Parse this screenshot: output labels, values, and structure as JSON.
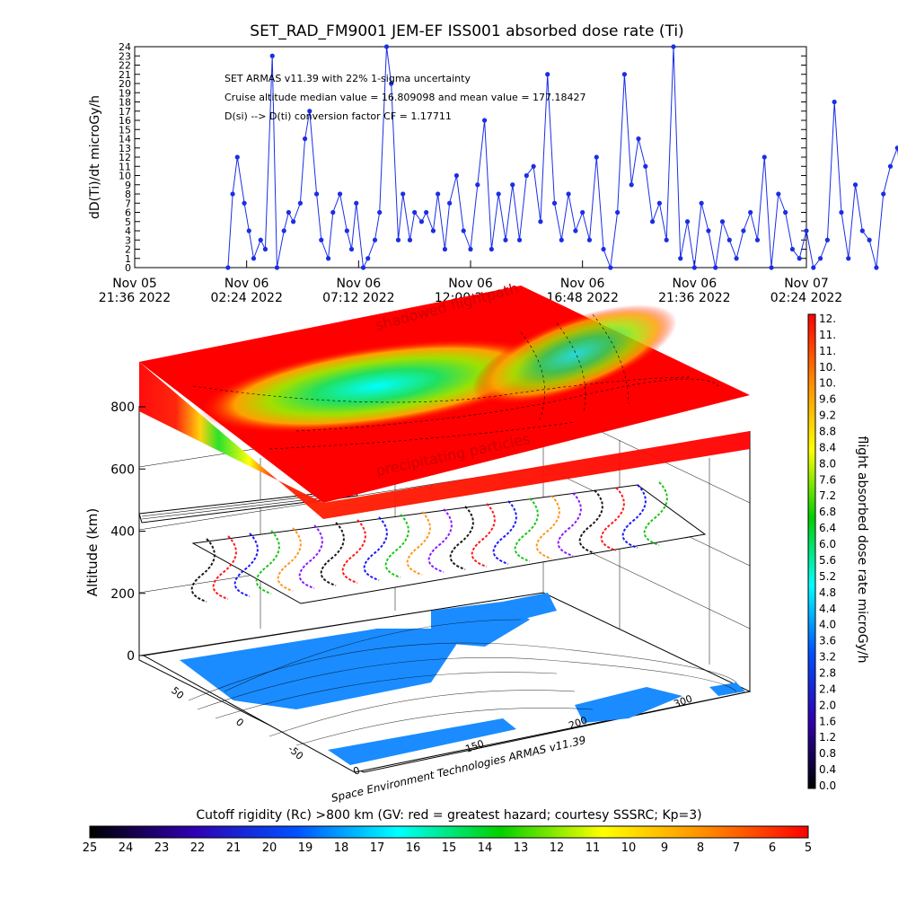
{
  "chart_data": [
    {
      "type": "scatter",
      "title": "SET_RAD_FM9001  JEM-EF ISS001 absorbed dose rate (Ti)",
      "ylabel": "dD(Ti)/dt microGy/h",
      "ylim": [
        0,
        24
      ],
      "yticks": [
        "0",
        "1",
        "2",
        "3",
        "4",
        "5",
        "6",
        "7",
        "8",
        "9",
        "10",
        "11",
        "12",
        "13",
        "14",
        "15",
        "16",
        "17",
        "18",
        "19",
        "20",
        "21",
        "22",
        "23",
        "24"
      ],
      "xticks": [
        {
          "line1": "Nov 05",
          "line2": "21:36 2022"
        },
        {
          "line1": "Nov 06",
          "line2": "02:24 2022"
        },
        {
          "line1": "Nov 06",
          "line2": "07:12 2022"
        },
        {
          "line1": "Nov 06",
          "line2": "12:00 2022"
        },
        {
          "line1": "Nov 06",
          "line2": "16:48 2022"
        },
        {
          "line1": "Nov 06",
          "line2": "21:36 2022"
        },
        {
          "line1": "Nov 07",
          "line2": "02:24 2022"
        }
      ],
      "annotations": [
        "SET ARMAS v11.39 with 22% 1-sigma uncertainty",
        "Cruise altitude median value = 16.809098 and mean value = 177.18427",
        "D(si) --> D(ti) conversion factor CF = 1.17711"
      ],
      "series_color": "#1a2ee6",
      "x_hours": [
        1.5,
        1.7,
        1.9,
        2.2,
        2.4,
        2.6,
        2.9,
        3.1,
        3.4,
        3.6,
        3.9,
        4.1,
        4.3,
        4.6,
        4.8,
        5.0,
        5.3,
        5.5,
        5.8,
        6.0,
        6.3,
        6.6,
        6.8,
        7.0,
        7.3,
        7.5,
        7.8,
        8.0,
        8.3,
        8.5,
        8.8,
        9.0,
        9.3,
        9.5,
        9.8,
        10.0,
        10.3,
        10.5,
        10.8,
        11.0,
        11.3,
        11.6,
        11.9,
        12.2,
        12.5,
        12.8,
        13.1,
        13.4,
        13.7,
        14.0,
        14.3,
        14.6,
        14.9,
        15.2,
        15.5,
        15.8,
        16.1,
        16.4,
        16.7,
        17.0,
        17.3,
        17.6,
        17.9,
        18.2,
        18.5,
        18.8,
        19.1,
        19.4,
        19.7,
        20.0,
        20.3,
        20.6,
        20.9,
        21.2,
        21.5,
        21.8,
        22.1,
        22.4,
        22.7,
        23.0,
        23.3,
        23.6,
        23.9,
        24.2,
        24.5,
        24.8,
        25.1,
        25.4,
        25.7,
        26.0,
        26.3,
        26.6,
        26.9,
        27.2,
        27.5,
        27.8,
        28.1,
        28.4,
        28.7,
        29.0,
        29.3,
        29.6,
        29.9,
        30.2,
        30.5,
        30.8,
        31.1,
        31.4
      ],
      "y": [
        0,
        8,
        12,
        7,
        4,
        1,
        3,
        2,
        23,
        0,
        4,
        6,
        5,
        7,
        14,
        17,
        8,
        3,
        1,
        6,
        8,
        4,
        2,
        7,
        0,
        1,
        3,
        6,
        24,
        20,
        3,
        8,
        3,
        6,
        5,
        6,
        4,
        8,
        2,
        7,
        10,
        4,
        2,
        9,
        16,
        2,
        8,
        3,
        9,
        3,
        10,
        11,
        5,
        21,
        7,
        3,
        8,
        4,
        6,
        3,
        12,
        2,
        0,
        6,
        21,
        9,
        14,
        11,
        5,
        7,
        3,
        24,
        1,
        5,
        0,
        7,
        4,
        0,
        5,
        3,
        1,
        4,
        6,
        3,
        12,
        0,
        8,
        6,
        2,
        1,
        4,
        0,
        1,
        3,
        18,
        6,
        1,
        9,
        4,
        3,
        0,
        8,
        11,
        13,
        7,
        2,
        20,
        14
      ]
    },
    {
      "type": "heatmap",
      "zlabel": "Altitude (km)",
      "zticks": [
        "0",
        "200",
        "400",
        "600",
        "800"
      ],
      "lat_ticks": [
        "50",
        "0",
        "-50"
      ],
      "lon_ticks": [
        "150",
        "200",
        "300"
      ],
      "labels": {
        "top": "shadowed flightpath",
        "bottom": "precipitating particles"
      },
      "credit": "Space Environment Technologies ARMAS v11.39"
    },
    {
      "type": "heatmap",
      "colorbar_title": "flight absorbed dose rate microGy/h",
      "colorbar_ticks": [
        "12.",
        "11.",
        "11.",
        "10.",
        "10.",
        "9.6",
        "9.2",
        "8.8",
        "8.4",
        "8.0",
        "7.6",
        "7.2",
        "6.8",
        "6.4",
        "6.0",
        "5.6",
        "5.2",
        "4.8",
        "4.4",
        "4.0",
        "3.6",
        "3.2",
        "2.8",
        "2.4",
        "2.0",
        "1.6",
        "1.2",
        "0.8",
        "0.4",
        "0.0"
      ],
      "colorbar_colors": [
        "#ff0000",
        "#ff8c00",
        "#ffff00",
        "#00d000",
        "#00ffff",
        "#0050ff",
        "#3000b0",
        "#000000"
      ]
    },
    {
      "type": "heatmap",
      "colorbar_title": "Cutoff rigidity (Rc) >800 km (GV: red = greatest hazard; courtesy SSSRC; Kp=3)",
      "colorbar_ticks": [
        "25",
        "24",
        "23",
        "22",
        "21",
        "20",
        "19",
        "18",
        "17",
        "16",
        "15",
        "14",
        "13",
        "12",
        "11",
        "10",
        "9",
        "8",
        "7",
        "6",
        "5"
      ],
      "colorbar_colors": [
        "#000000",
        "#3000b0",
        "#0050ff",
        "#00ffff",
        "#00d000",
        "#ffff00",
        "#ff8c00",
        "#ff0000"
      ]
    }
  ]
}
